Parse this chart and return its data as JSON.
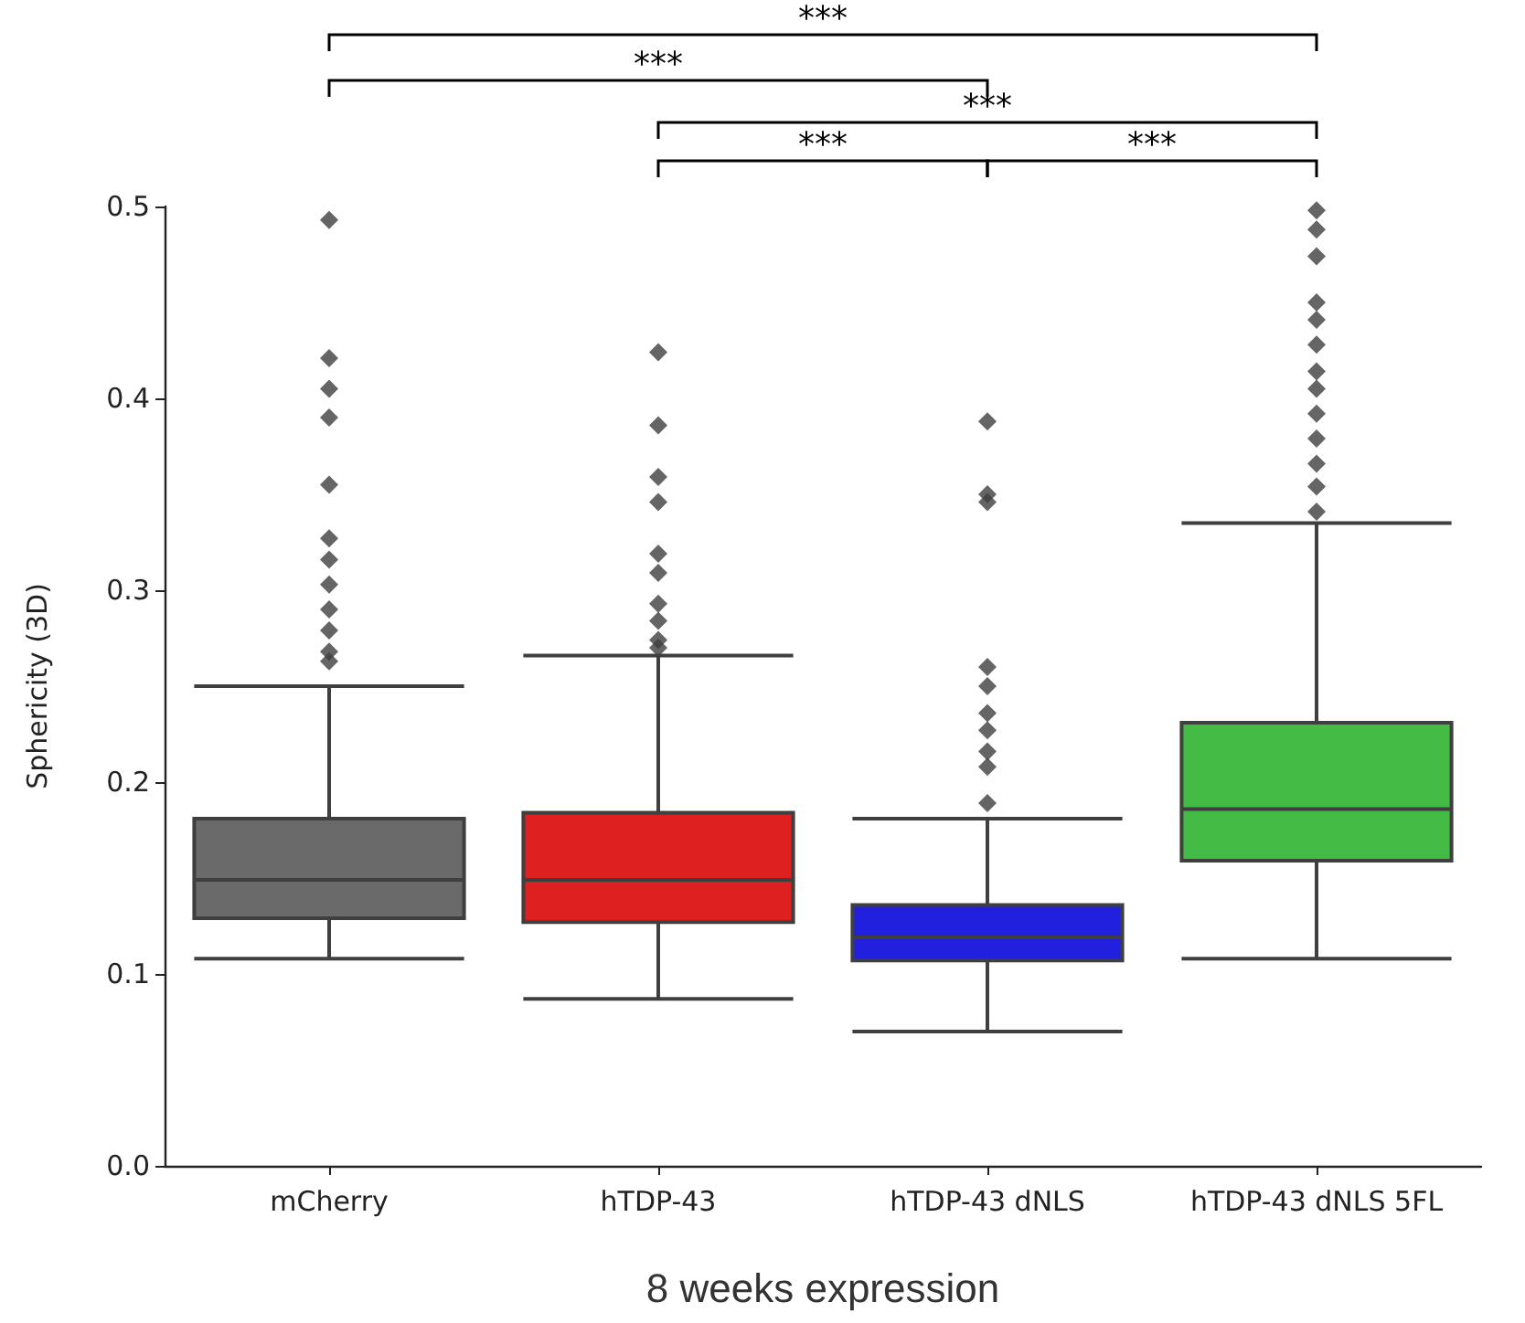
{
  "chart_data": {
    "type": "box",
    "xlabel": "8 weeks expression",
    "ylabel": "Sphericity (3D)",
    "categories": [
      "mCherry",
      "hTDP-43",
      "hTDP-43 dNLS",
      "hTDP-43 dNLS 5FL"
    ],
    "colors": [
      "#6a6a6a",
      "#de2020",
      "#2020de",
      "#44bb44"
    ],
    "boxes": [
      {
        "low": 0.108,
        "q1": 0.129,
        "median": 0.149,
        "q3": 0.181,
        "high": 0.25,
        "outliers": [
          0.493,
          0.421,
          0.405,
          0.39,
          0.355,
          0.327,
          0.316,
          0.303,
          0.29,
          0.279,
          0.268,
          0.263
        ]
      },
      {
        "low": 0.087,
        "q1": 0.127,
        "median": 0.149,
        "q3": 0.184,
        "high": 0.266,
        "outliers": [
          0.424,
          0.386,
          0.359,
          0.346,
          0.319,
          0.309,
          0.293,
          0.284,
          0.274,
          0.27
        ]
      },
      {
        "low": 0.07,
        "q1": 0.107,
        "median": 0.119,
        "q3": 0.136,
        "high": 0.181,
        "outliers": [
          0.388,
          0.35,
          0.346,
          0.26,
          0.25,
          0.236,
          0.227,
          0.216,
          0.208,
          0.189
        ]
      },
      {
        "low": 0.108,
        "q1": 0.159,
        "median": 0.186,
        "q3": 0.231,
        "high": 0.335,
        "outliers": [
          0.498,
          0.488,
          0.474,
          0.45,
          0.441,
          0.428,
          0.414,
          0.405,
          0.392,
          0.379,
          0.366,
          0.354,
          0.341
        ]
      }
    ],
    "ylim": [
      0,
      0.5
    ],
    "yticks": [
      {
        "value": 0,
        "label": "0.0"
      },
      {
        "value": 0.1,
        "label": "0.1"
      },
      {
        "value": 0.2,
        "label": "0.2"
      },
      {
        "value": 0.3,
        "label": "0.3"
      },
      {
        "value": 0.4,
        "label": "0.4"
      },
      {
        "value": 0.5,
        "label": "0.5"
      }
    ],
    "marker": "diamond",
    "grid": false,
    "annotations": [
      "***",
      "***",
      "***",
      "***",
      "***"
    ]
  }
}
